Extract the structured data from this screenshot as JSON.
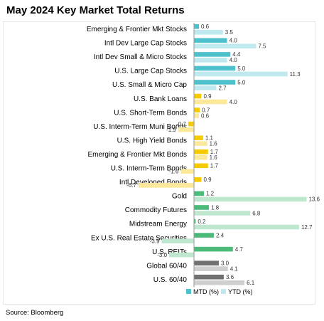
{
  "title": "May 2024 Key Market Total Returns",
  "source": "Source: Bloomberg",
  "chart_data": {
    "type": "bar",
    "orientation": "horizontal",
    "title": "May 2024 Key Market Total Returns",
    "xlabel": "",
    "ylabel": "",
    "xlim": [
      -7,
      14
    ],
    "grid": false,
    "legend_position": "bottom-right",
    "categories": [
      "Emerging & Frontier Mkt Stocks",
      "Intl Dev Large Cap Stocks",
      "Intl Dev Small & Micro Stocks",
      "U.S. Large Cap Stocks",
      "U.S. Small & Micro Cap",
      "U.S. Bank Loans",
      "U.S. Short-Term Bonds",
      "U.S. Interm-Term Muni Bonds",
      "U.S. High Yield Bonds",
      "Emerging & Frontier Mkt Bonds",
      "U.S. Interm-Term Bonds",
      "Intl Developed Bonds",
      "Gold",
      "Commodity Futures",
      "Midstream Energy",
      "Ex U.S. Real Estate Securities",
      "U.S. REITs",
      "Global 60/40",
      "U.S. 60/40"
    ],
    "groups": [
      "equity",
      "equity",
      "equity",
      "equity",
      "equity",
      "bond",
      "bond",
      "bond",
      "bond",
      "bond",
      "bond",
      "bond",
      "real",
      "real",
      "real",
      "real",
      "real",
      "mixed",
      "mixed"
    ],
    "series": [
      {
        "name": "MTD (%)",
        "values": [
          0.6,
          4.0,
          4.4,
          5.0,
          5.0,
          0.9,
          0.7,
          -0.7,
          1.1,
          1.7,
          1.7,
          0.9,
          1.2,
          1.8,
          0.2,
          2.4,
          4.7,
          3.0,
          3.6
        ]
      },
      {
        "name": "YTD (%)",
        "values": [
          3.5,
          7.5,
          4.0,
          11.3,
          2.7,
          4.0,
          0.6,
          -1.9,
          1.6,
          1.6,
          -1.6,
          -6.7,
          13.6,
          6.8,
          12.7,
          -3.9,
          -3.0,
          4.1,
          6.1
        ]
      }
    ],
    "colors": {
      "equity": {
        "mtd": "#4fc1cc",
        "ytd": "#bfe9ee"
      },
      "bond": {
        "mtd": "#f5cb00",
        "ytd": "#fbe89b"
      },
      "real": {
        "mtd": "#4cba78",
        "ytd": "#bfe6cf"
      },
      "mixed": {
        "mtd": "#707070",
        "ytd": "#cfcfcf"
      }
    },
    "legend_colors": {
      "mtd": "#4fc1cc",
      "ytd": "#bfe9ee"
    }
  }
}
